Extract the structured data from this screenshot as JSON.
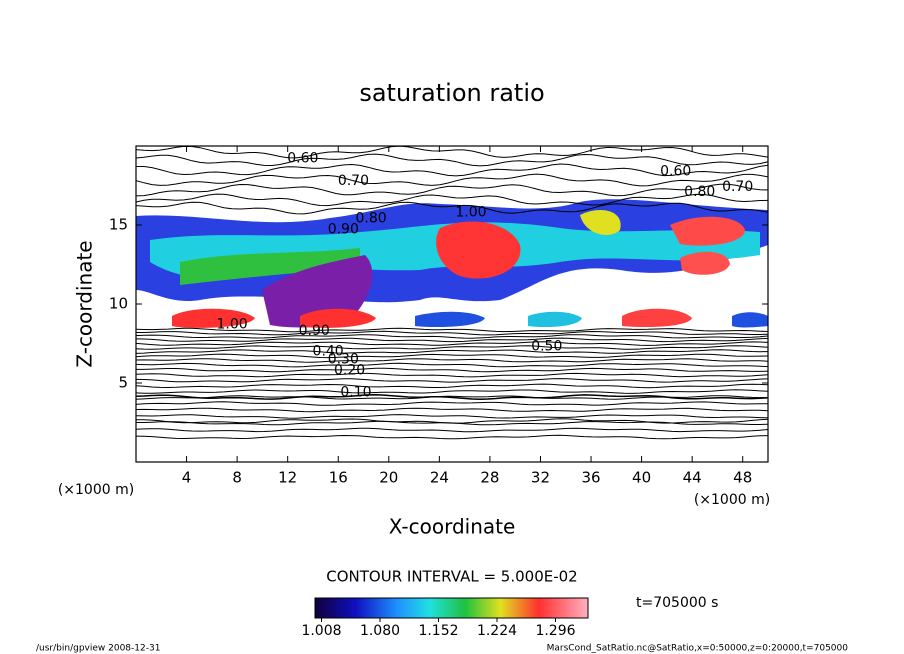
{
  "chart_data": {
    "type": "contour",
    "title": "saturation ratio",
    "xlabel": "X-coordinate",
    "ylabel": "Z-coordinate",
    "x_unit": "(×1000 m)",
    "y_unit": "(×1000 m)",
    "xlim": [
      0,
      50
    ],
    "xticks": [
      4,
      8,
      12,
      16,
      20,
      24,
      28,
      32,
      36,
      40,
      44,
      48
    ],
    "ylim": [
      0,
      20
    ],
    "yticks": [
      5,
      10,
      15
    ],
    "contour_labels": [
      {
        "label": "0.60",
        "value": 0.6,
        "x": 13.2,
        "y": 19.2
      },
      {
        "label": "0.70",
        "value": 0.7,
        "x": 17.2,
        "y": 17.8
      },
      {
        "label": "0.80",
        "value": 0.8,
        "x": 18.6,
        "y": 15.4
      },
      {
        "label": "0.90",
        "value": 0.9,
        "x": 16.4,
        "y": 14.7
      },
      {
        "label": "1.00",
        "value": 1.0,
        "x": 26.5,
        "y": 15.8
      },
      {
        "label": "0.60",
        "value": 0.6,
        "x": 42.7,
        "y": 18.4
      },
      {
        "label": "0.80",
        "value": 0.8,
        "x": 44.6,
        "y": 17.1
      },
      {
        "label": "0.70",
        "value": 0.7,
        "x": 47.6,
        "y": 17.4
      },
      {
        "label": "1.00",
        "value": 1.0,
        "x": 7.6,
        "y": 8.7
      },
      {
        "label": "0.90",
        "value": 0.9,
        "x": 14.1,
        "y": 8.3
      },
      {
        "label": "0.40",
        "value": 0.4,
        "x": 15.2,
        "y": 7.0
      },
      {
        "label": "0.30",
        "value": 0.3,
        "x": 16.4,
        "y": 6.5
      },
      {
        "label": "0.20",
        "value": 0.2,
        "x": 16.9,
        "y": 5.8
      },
      {
        "label": "0.10",
        "value": 0.1,
        "x": 17.4,
        "y": 4.4
      },
      {
        "label": "0.50",
        "value": 0.5,
        "x": 32.5,
        "y": 7.3
      }
    ],
    "contour_interval": "CONTOUR INTERVAL = 5.000E-02",
    "time_label": "t=705000 s",
    "colorbar_lim": [
      1.0,
      1.336
    ],
    "colorbar_ticks": [
      1.008,
      {
        "value": 1.08,
        "label": "1.080"
      },
      1.152,
      1.224,
      1.296
    ],
    "footer_left": "/usr/bin/gpview   2008-12-31",
    "footer_right": "MarsCond_SatRatio.nc@SatRatio,x=0:50000,z=0:20000,t=705000"
  }
}
